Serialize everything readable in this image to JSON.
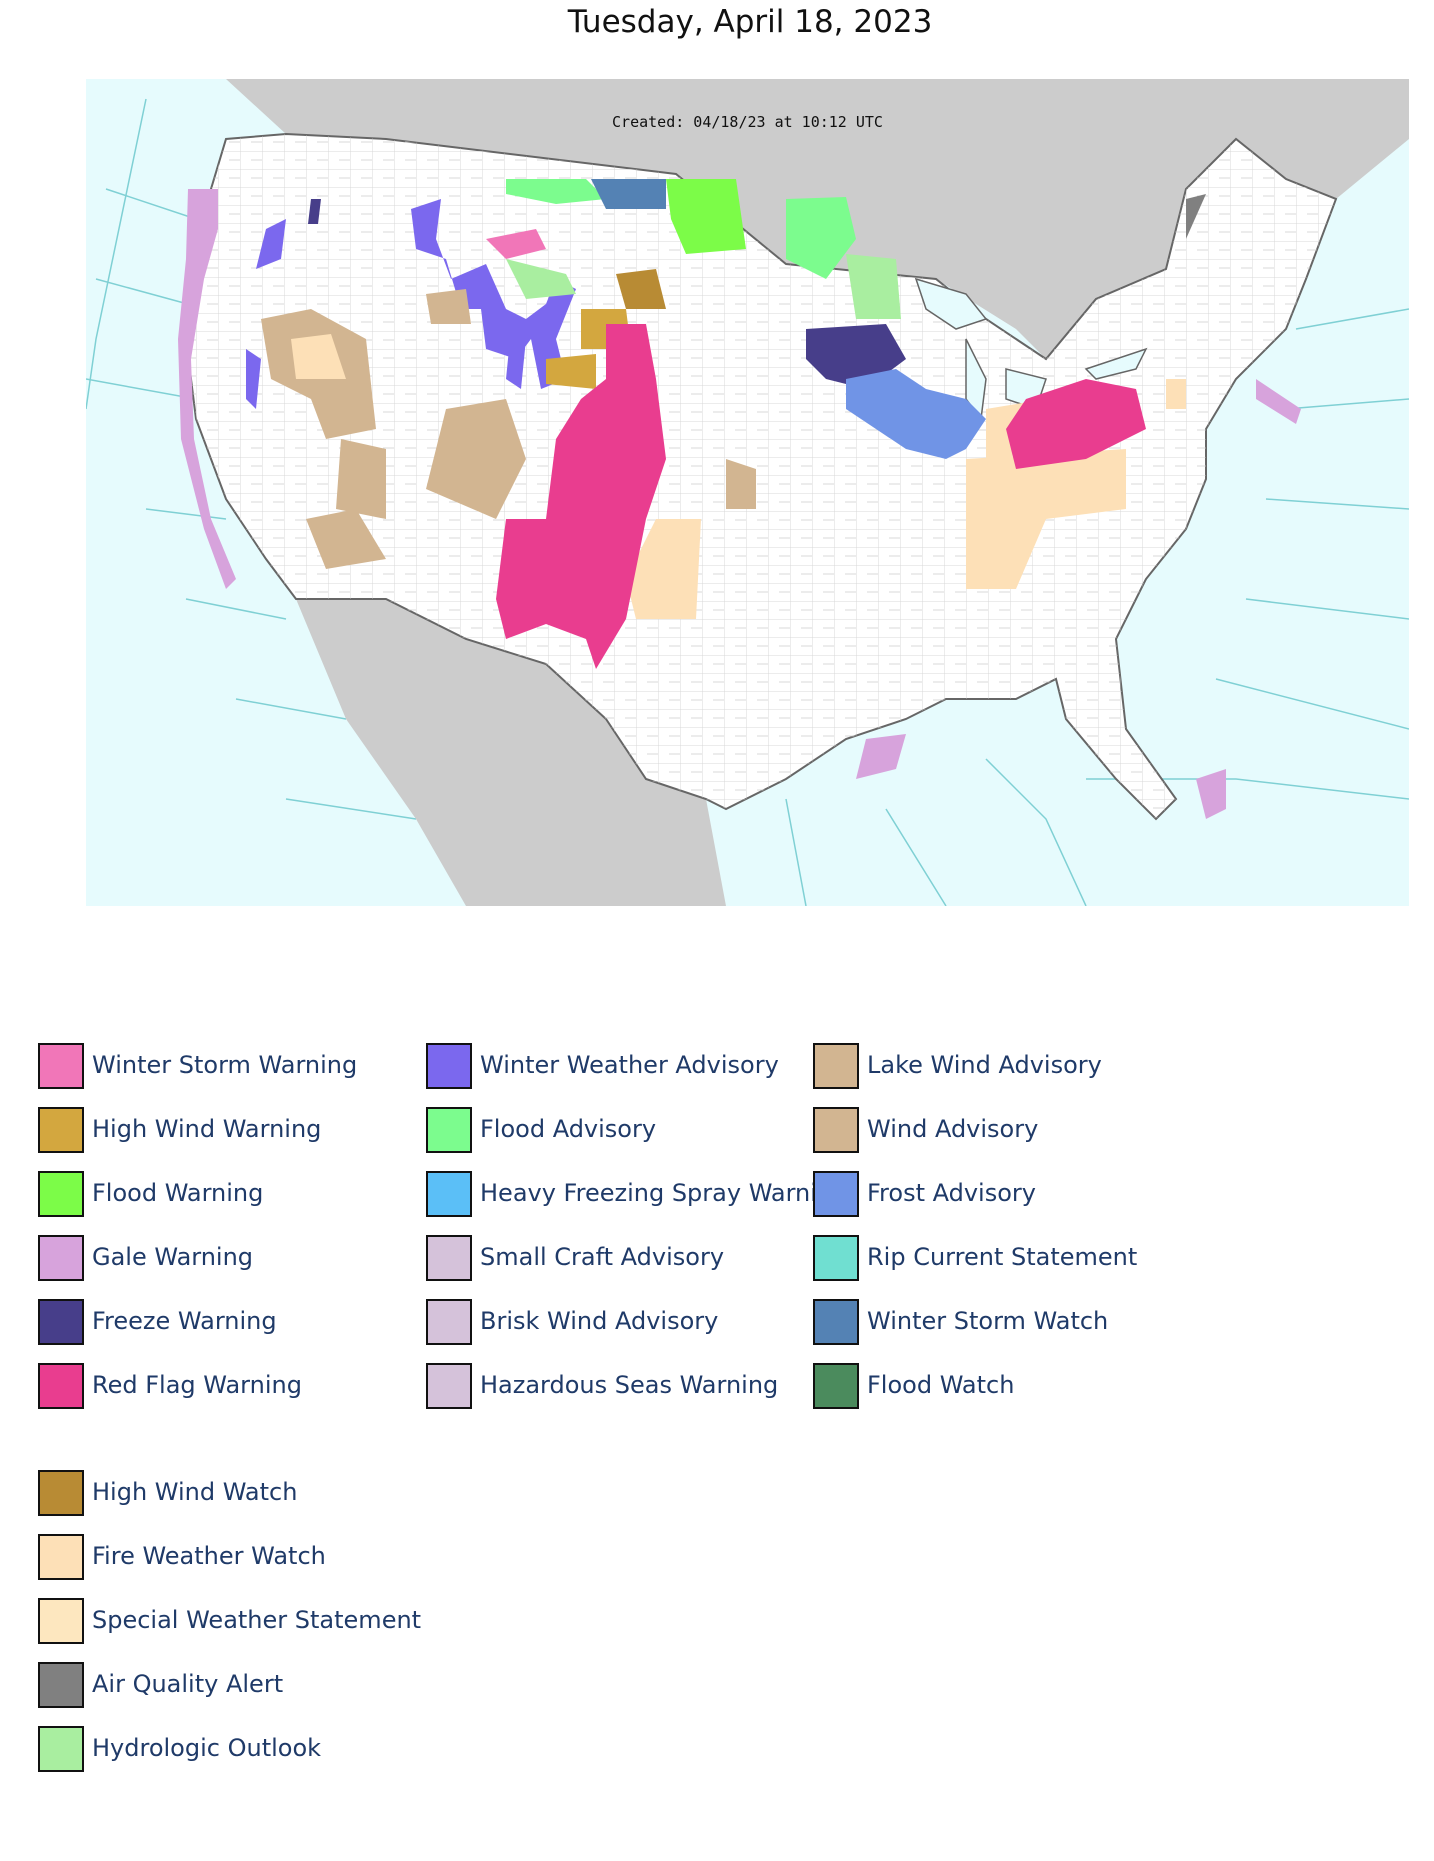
{
  "page": {
    "title": "Tuesday, April 18, 2023"
  },
  "map": {
    "created_label": "Created: 04/18/23 at 10:12 UTC",
    "colors": {
      "ocean": "#e6fbfd",
      "foreign_land": "#cccccc",
      "land": "#ffffff",
      "county_lines": "#c8c8c8",
      "marine_zone_lines": "#7fd0d4"
    }
  },
  "legend": {
    "columns": [
      [
        {
          "label": "Winter Storm Warning",
          "color": "#f176b8"
        },
        {
          "label": "High Wind Warning",
          "color": "#d3a73f"
        },
        {
          "label": "Flood Warning",
          "color": "#7cfc48"
        },
        {
          "label": "Gale Warning",
          "color": "#d7a3dc"
        },
        {
          "label": "Freeze Warning",
          "color": "#473e8a"
        },
        {
          "label": "Red Flag Warning",
          "color": "#e93d8f"
        }
      ],
      [
        {
          "label": "Winter Weather Advisory",
          "color": "#7b68ee"
        },
        {
          "label": "Flood Advisory",
          "color": "#7cfc8e"
        },
        {
          "label": "Heavy Freezing Spray Warning",
          "color": "#5bbff7"
        },
        {
          "label": "Small Craft Advisory",
          "color": "#d5c2da"
        },
        {
          "label": "Brisk Wind Advisory",
          "color": "#d5c2da"
        },
        {
          "label": "Hazardous Seas Warning",
          "color": "#d5c2da"
        }
      ],
      [
        {
          "label": "Lake Wind Advisory",
          "color": "#d2b591"
        },
        {
          "label": "Wind Advisory",
          "color": "#d2b591"
        },
        {
          "label": "Frost Advisory",
          "color": "#7094e6"
        },
        {
          "label": "Rip Current Statement",
          "color": "#70dfd1"
        },
        {
          "label": "Winter Storm Watch",
          "color": "#5482b4"
        },
        {
          "label": "Flood Watch",
          "color": "#4b8b5d"
        }
      ]
    ],
    "second_block": [
      {
        "label": "High Wind Watch",
        "color": "#b88b34"
      },
      {
        "label": "Fire Weather Watch",
        "color": "#fde0b7"
      },
      {
        "label": "Special Weather Statement",
        "color": "#fde7bf"
      },
      {
        "label": "Air Quality Alert",
        "color": "#808080"
      },
      {
        "label": "Hydrologic Outlook",
        "color": "#a9eea0"
      }
    ]
  }
}
